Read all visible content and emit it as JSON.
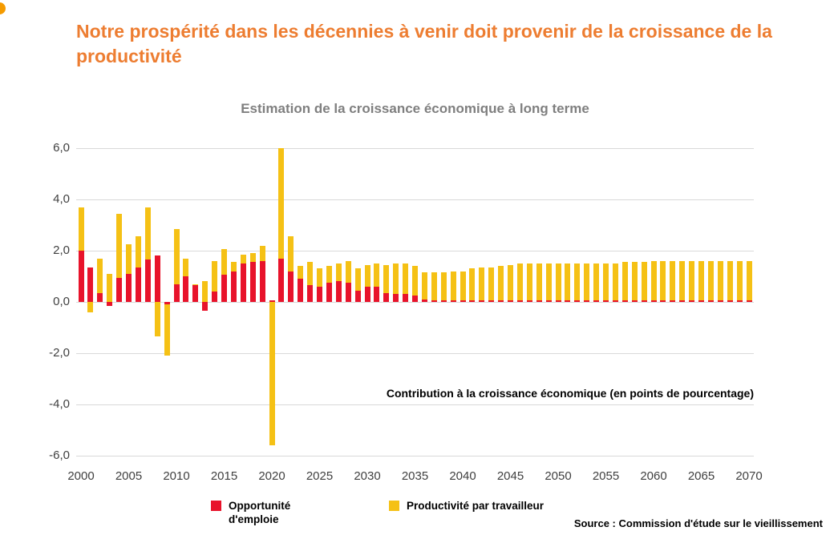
{
  "page": {
    "title": "Notre prospérité dans les décennies à venir doit provenir de la croissance de la productivité",
    "source": "Source : Commission d'étude sur le vieillissement"
  },
  "chart_data": {
    "type": "bar",
    "stacked": true,
    "title": "Estimation de la croissance économique à long terme",
    "annotation": "Contribution à la croissance économique (en points de pourcentage)",
    "ylim": [
      -6,
      6
    ],
    "yticks": [
      6,
      4,
      2,
      0,
      -2,
      -4,
      -6
    ],
    "xticks": [
      2000,
      2005,
      2010,
      2015,
      2020,
      2025,
      2030,
      2035,
      2040,
      2045,
      2050,
      2055,
      2060,
      2065,
      2070
    ],
    "grid": true,
    "legend_position": "bottom",
    "x": [
      2000,
      2001,
      2002,
      2003,
      2004,
      2005,
      2006,
      2007,
      2008,
      2009,
      2010,
      2011,
      2012,
      2013,
      2014,
      2015,
      2016,
      2017,
      2018,
      2019,
      2020,
      2021,
      2022,
      2023,
      2024,
      2025,
      2026,
      2027,
      2028,
      2029,
      2030,
      2031,
      2032,
      2033,
      2034,
      2035,
      2036,
      2037,
      2038,
      2039,
      2040,
      2041,
      2042,
      2043,
      2044,
      2045,
      2046,
      2047,
      2048,
      2049,
      2050,
      2051,
      2052,
      2053,
      2054,
      2055,
      2056,
      2057,
      2058,
      2059,
      2060,
      2061,
      2062,
      2063,
      2064,
      2065,
      2066,
      2067,
      2068,
      2069,
      2070
    ],
    "series": [
      {
        "name": "Opportunité d'emploie",
        "color": "#e8132b",
        "values": [
          2.0,
          1.35,
          0.35,
          -0.15,
          0.95,
          1.1,
          1.35,
          1.65,
          1.8,
          -0.1,
          0.7,
          1.0,
          0.65,
          -0.35,
          0.4,
          1.05,
          1.2,
          1.5,
          1.55,
          1.6,
          0.05,
          1.7,
          1.2,
          0.9,
          0.65,
          0.6,
          0.75,
          0.8,
          0.75,
          0.45,
          0.6,
          0.6,
          0.35,
          0.3,
          0.3,
          0.25,
          0.1,
          0.05,
          0.05,
          0.05,
          0.05,
          0.05,
          0.05,
          0.05,
          0.05,
          0.05,
          0.05,
          0.05,
          0.05,
          0.05,
          0.05,
          0.05,
          0.05,
          0.05,
          0.05,
          0.05,
          0.05,
          0.05,
          0.05,
          0.05,
          0.05,
          0.05,
          0.05,
          0.05,
          0.05,
          0.05,
          0.05,
          0.05,
          0.05,
          0.05,
          0.05
        ]
      },
      {
        "name": "Productivité par travailleur",
        "color": "#f5c115",
        "values": [
          1.7,
          -0.4,
          1.35,
          1.1,
          2.5,
          1.15,
          1.2,
          2.05,
          -1.35,
          -2.0,
          2.15,
          0.7,
          0.05,
          0.8,
          1.2,
          1.0,
          0.35,
          0.35,
          0.35,
          0.6,
          -5.6,
          4.3,
          1.35,
          0.5,
          0.9,
          0.7,
          0.65,
          0.7,
          0.85,
          0.85,
          0.85,
          0.9,
          1.1,
          1.2,
          1.2,
          1.15,
          1.05,
          1.1,
          1.1,
          1.15,
          1.15,
          1.25,
          1.3,
          1.3,
          1.35,
          1.4,
          1.45,
          1.45,
          1.45,
          1.45,
          1.45,
          1.45,
          1.45,
          1.45,
          1.45,
          1.45,
          1.45,
          1.5,
          1.5,
          1.5,
          1.55,
          1.55,
          1.55,
          1.55,
          1.55,
          1.55,
          1.55,
          1.55,
          1.55,
          1.55,
          1.55
        ]
      }
    ]
  }
}
